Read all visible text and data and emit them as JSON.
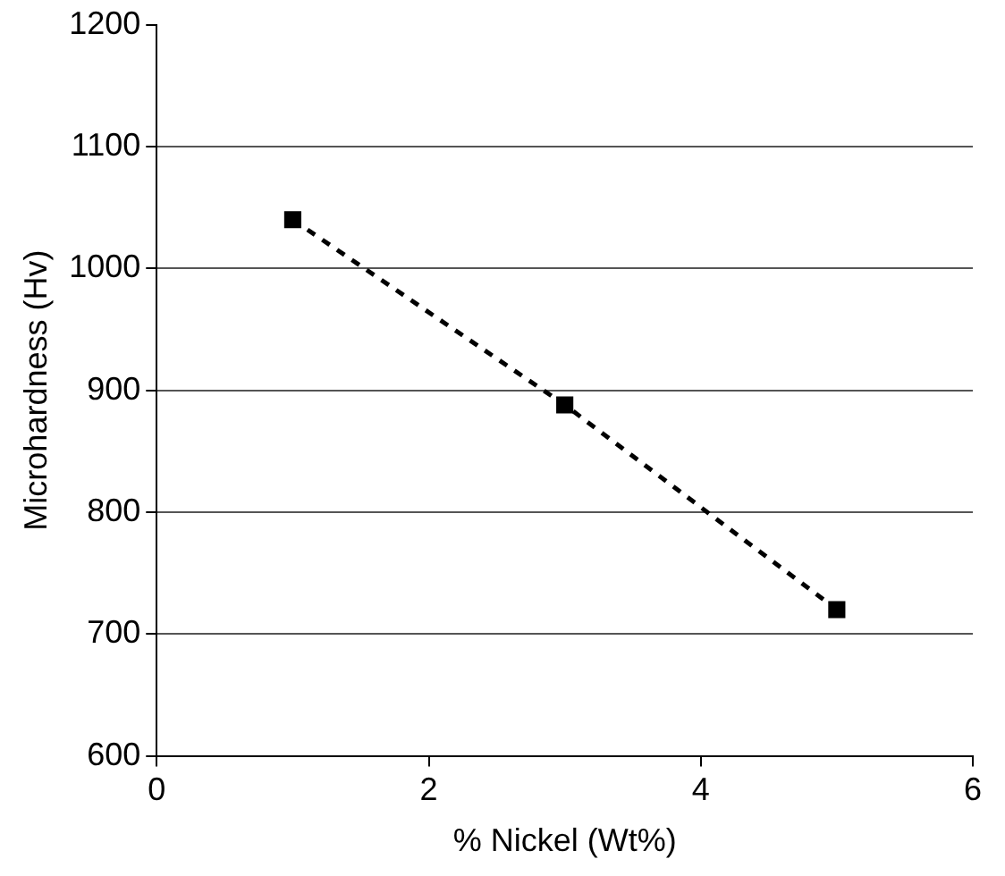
{
  "chart_data": {
    "type": "line",
    "xlabel": "% Nickel (Wt%)",
    "ylabel": "Microhardness (Hv)",
    "x": [
      1,
      3,
      5
    ],
    "series": [
      {
        "color": "#000000",
        "values": [
          1040,
          888,
          720
        ]
      }
    ],
    "xlim": [
      0,
      6
    ],
    "xticks": [
      0,
      2,
      4,
      6
    ],
    "ylim": [
      600,
      1200
    ],
    "yticks": [
      600,
      700,
      800,
      900,
      1000,
      1100,
      1200
    ],
    "grid": "y",
    "legend": false,
    "marker": "square",
    "line_style": "dashed"
  }
}
